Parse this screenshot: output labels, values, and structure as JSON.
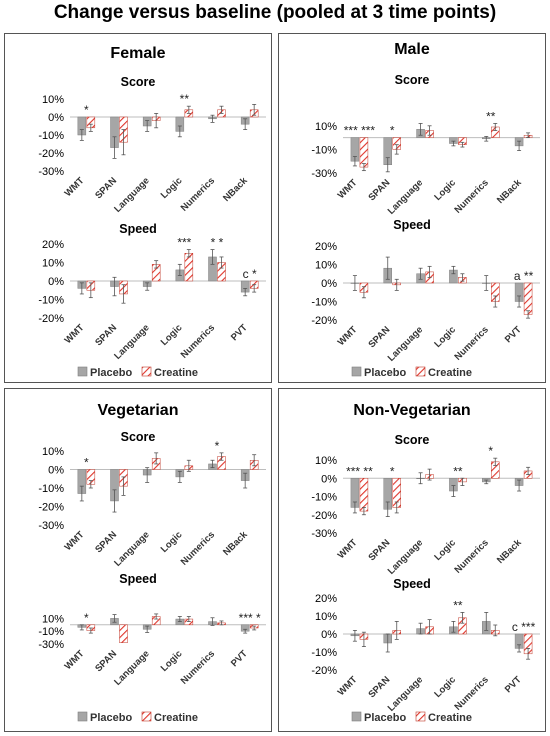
{
  "title": "Change versus baseline (pooled at 3 time points)",
  "legend": {
    "placebo": "Placebo",
    "creatine": "Creatine"
  },
  "colors": {
    "placebo": "#a6a6a6",
    "placebo_edge": "#808080",
    "creatine_stripe": "#e0362c",
    "creatine_edge": "#c0392b"
  },
  "panels": [
    {
      "title": "Female",
      "score_title": "Score",
      "speed_title": "Speed"
    },
    {
      "title": "Male",
      "score_title": "Score",
      "speed_title": "Speed"
    },
    {
      "title": "Vegetarian",
      "score_title": "Score",
      "speed_title": "Speed"
    },
    {
      "title": "Non-Vegetarian",
      "score_title": "Score",
      "speed_title": "Speed"
    }
  ],
  "chart_data": [
    {
      "panel": "Female",
      "subplot": "Score",
      "type": "bar",
      "categories": [
        "WMT",
        "SPAN",
        "Language",
        "Logic",
        "Numerics",
        "NBack"
      ],
      "yticks": [
        "10%",
        "0%",
        "-10%",
        "-20%",
        "-30%"
      ],
      "ylim": [
        -0.3,
        0.1
      ],
      "series": [
        {
          "name": "Placebo",
          "values": [
            -0.1,
            -0.17,
            -0.05,
            -0.08,
            -0.01,
            -0.04
          ],
          "err": [
            0.03,
            0.06,
            0.03,
            0.03,
            0.02,
            0.03
          ]
        },
        {
          "name": "Creatine",
          "values": [
            -0.06,
            -0.14,
            -0.02,
            0.04,
            0.04,
            0.04
          ],
          "err": [
            0.02,
            0.07,
            0.04,
            0.02,
            0.02,
            0.03
          ]
        }
      ],
      "annotations": [
        {
          "cat": 0,
          "text": "*"
        },
        {
          "cat": 3,
          "text": "**"
        }
      ]
    },
    {
      "panel": "Female",
      "subplot": "Speed",
      "type": "bar",
      "categories": [
        "WMT",
        "SPAN",
        "Language",
        "Logic",
        "Numerics",
        "PVT"
      ],
      "yticks": [
        "20%",
        "10%",
        "0%",
        "-10%",
        "-20%"
      ],
      "ylim": [
        -0.2,
        0.2
      ],
      "series": [
        {
          "name": "Placebo",
          "values": [
            -0.04,
            -0.03,
            -0.03,
            0.06,
            0.13,
            -0.06
          ],
          "err": [
            0.03,
            0.05,
            0.02,
            0.03,
            0.04,
            0.02
          ]
        },
        {
          "name": "Creatine",
          "values": [
            -0.05,
            -0.07,
            0.09,
            0.15,
            0.1,
            -0.04
          ],
          "err": [
            0.04,
            0.05,
            0.02,
            0.02,
            0.03,
            0.02
          ]
        }
      ],
      "annotations": [
        {
          "cat": 3,
          "text": "***"
        },
        {
          "cat": 4,
          "text": "*   *"
        },
        {
          "cat": 5,
          "text": "c  *"
        }
      ]
    },
    {
      "panel": "Male",
      "subplot": "Score",
      "type": "bar",
      "categories": [
        "WMT",
        "SPAN",
        "Language",
        "Logic",
        "Numerics",
        "NBack"
      ],
      "yticks": [
        "10%",
        "-10%",
        "-30%"
      ],
      "ylim": [
        -0.3,
        0.2
      ],
      "series": [
        {
          "name": "Placebo",
          "values": [
            -0.2,
            -0.23,
            0.07,
            -0.05,
            -0.01,
            -0.07
          ],
          "err": [
            0.04,
            0.06,
            0.05,
            0.02,
            0.02,
            0.04
          ]
        },
        {
          "name": "Creatine",
          "values": [
            -0.25,
            -0.1,
            0.06,
            -0.06,
            0.09,
            0.02
          ],
          "err": [
            0.03,
            0.04,
            0.04,
            0.02,
            0.03,
            0.02
          ]
        }
      ],
      "annotations": [
        {
          "cat": 0,
          "text": "*** ***"
        },
        {
          "cat": 1,
          "text": "*"
        },
        {
          "cat": 4,
          "text": "**"
        }
      ]
    },
    {
      "panel": "Male",
      "subplot": "Speed",
      "type": "bar",
      "categories": [
        "WMT",
        "SPAN",
        "Language",
        "Logic",
        "Numerics",
        "PVT"
      ],
      "yticks": [
        "20%",
        "10%",
        "0%",
        "-10%",
        "-20%"
      ],
      "ylim": [
        -0.2,
        0.2
      ],
      "series": [
        {
          "name": "Placebo",
          "values": [
            0.0,
            0.08,
            0.05,
            0.07,
            0.0,
            -0.1
          ],
          "err": [
            0.04,
            0.06,
            0.03,
            0.02,
            0.04,
            0.03
          ]
        },
        {
          "name": "Creatine",
          "values": [
            -0.05,
            -0.01,
            0.06,
            0.03,
            -0.1,
            -0.17
          ],
          "err": [
            0.03,
            0.03,
            0.03,
            0.02,
            0.03,
            0.02
          ]
        }
      ],
      "annotations": [
        {
          "cat": 5,
          "text": "a  **"
        }
      ]
    },
    {
      "panel": "Vegetarian",
      "subplot": "Score",
      "type": "bar",
      "categories": [
        "WMT",
        "SPAN",
        "Language",
        "Logic",
        "Numerics",
        "NBack"
      ],
      "yticks": [
        "10%",
        "0%",
        "-10%",
        "-20%",
        "-30%"
      ],
      "ylim": [
        -0.3,
        0.1
      ],
      "series": [
        {
          "name": "Placebo",
          "values": [
            -0.13,
            -0.17,
            -0.03,
            -0.04,
            0.03,
            -0.06
          ],
          "err": [
            0.04,
            0.06,
            0.04,
            0.03,
            0.02,
            0.04
          ]
        },
        {
          "name": "Creatine",
          "values": [
            -0.08,
            -0.09,
            0.06,
            0.02,
            0.07,
            0.05
          ],
          "err": [
            0.02,
            0.05,
            0.03,
            0.03,
            0.02,
            0.03
          ]
        }
      ],
      "annotations": [
        {
          "cat": 0,
          "text": "*"
        },
        {
          "cat": 4,
          "text": "*"
        }
      ]
    },
    {
      "panel": "Vegetarian",
      "subplot": "Speed",
      "type": "bar",
      "categories": [
        "WMT",
        "SPAN",
        "Language",
        "Logic",
        "Numerics",
        "PVT"
      ],
      "yticks": [
        "10%",
        "-10%",
        "-30%"
      ],
      "ylim": [
        -0.3,
        0.2
      ],
      "series": [
        {
          "name": "Placebo",
          "values": [
            -0.04,
            0.1,
            -0.07,
            0.09,
            0.05,
            -0.1
          ],
          "err": [
            0.04,
            0.06,
            0.05,
            0.04,
            0.06,
            0.03
          ]
        },
        {
          "name": "Creatine",
          "values": [
            -0.09,
            -0.28,
            0.13,
            0.09,
            0.03,
            -0.05
          ],
          "err": [
            0.04,
            0.0,
            0.04,
            0.04,
            0.03,
            0.03
          ]
        }
      ],
      "annotations": [
        {
          "cat": 0,
          "text": "*"
        },
        {
          "cat": 5,
          "text": "***  *"
        }
      ]
    },
    {
      "panel": "Non-Vegetarian",
      "subplot": "Score",
      "type": "bar",
      "categories": [
        "WMT",
        "SPAN",
        "Language",
        "Logic",
        "Numerics",
        "NBack"
      ],
      "yticks": [
        "10%",
        "0%",
        "-10%",
        "-20%",
        "-30%"
      ],
      "ylim": [
        -0.3,
        0.1
      ],
      "series": [
        {
          "name": "Placebo",
          "values": [
            -0.16,
            -0.17,
            0.0,
            -0.07,
            -0.02,
            -0.04
          ],
          "err": [
            0.03,
            0.04,
            0.03,
            0.03,
            0.01,
            0.03
          ]
        },
        {
          "name": "Creatine",
          "values": [
            -0.18,
            -0.16,
            0.02,
            -0.02,
            0.09,
            0.04
          ],
          "err": [
            0.02,
            0.03,
            0.03,
            0.02,
            0.02,
            0.02
          ]
        }
      ],
      "annotations": [
        {
          "cat": 0,
          "text": "***  **"
        },
        {
          "cat": 1,
          "text": "*"
        },
        {
          "cat": 3,
          "text": "**"
        },
        {
          "cat": 4,
          "text": "*"
        }
      ]
    },
    {
      "panel": "Non-Vegetarian",
      "subplot": "Speed",
      "type": "bar",
      "categories": [
        "WMT",
        "SPAN",
        "Language",
        "Logic",
        "Numerics",
        "PVT"
      ],
      "yticks": [
        "20%",
        "10%",
        "0%",
        "-10%",
        "-20%"
      ],
      "ylim": [
        -0.2,
        0.2
      ],
      "series": [
        {
          "name": "Placebo",
          "values": [
            -0.01,
            -0.05,
            0.03,
            0.04,
            0.07,
            -0.08
          ],
          "err": [
            0.03,
            0.05,
            0.03,
            0.03,
            0.05,
            0.02
          ]
        },
        {
          "name": "Creatine",
          "values": [
            -0.03,
            0.02,
            0.04,
            0.09,
            0.02,
            -0.11
          ],
          "err": [
            0.04,
            0.05,
            0.04,
            0.03,
            0.03,
            0.03
          ]
        }
      ],
      "annotations": [
        {
          "cat": 3,
          "text": "**"
        },
        {
          "cat": 5,
          "text": "c  ***"
        }
      ]
    }
  ]
}
